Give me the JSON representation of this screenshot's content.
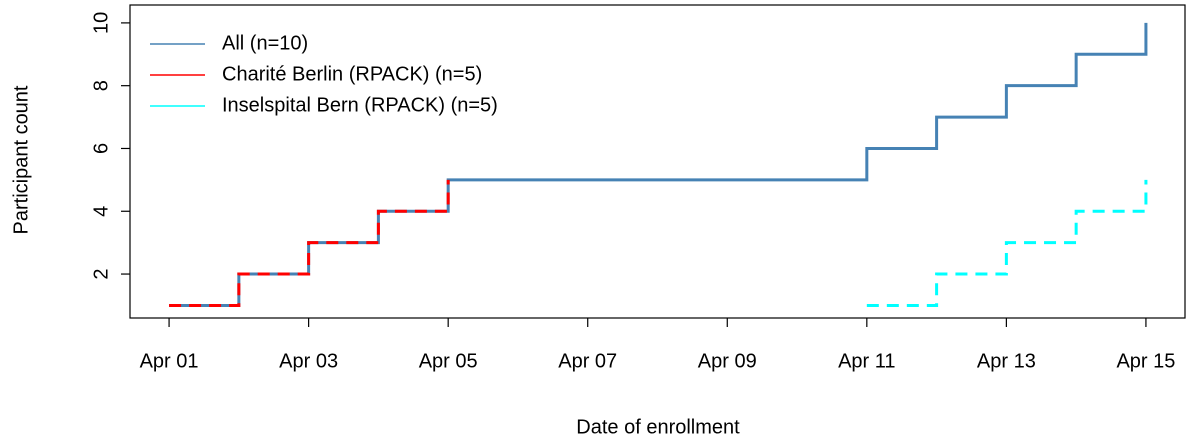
{
  "chart_data": {
    "type": "step",
    "xlabel": "Date of enrollment",
    "ylabel": "Participant count",
    "xlim": [
      0.44,
      15.56
    ],
    "xticks": [
      {
        "value": 1,
        "label": "Apr 01"
      },
      {
        "value": 3,
        "label": "Apr 03"
      },
      {
        "value": 5,
        "label": "Apr 05"
      },
      {
        "value": 7,
        "label": "Apr 07"
      },
      {
        "value": 9,
        "label": "Apr 09"
      },
      {
        "value": 11,
        "label": "Apr 11"
      },
      {
        "value": 13,
        "label": "Apr 13"
      },
      {
        "value": 15,
        "label": "Apr 15"
      }
    ],
    "ylim": [
      0.6,
      10.57
    ],
    "yticks": [
      2,
      4,
      6,
      8,
      10
    ],
    "legend": "top-left",
    "series": [
      {
        "name": "All (n=10)",
        "color": "#4682b4",
        "linestyle": "solid",
        "x": [
          1,
          2,
          3,
          4,
          5,
          11,
          12,
          13,
          14,
          15
        ],
        "values": [
          1,
          2,
          3,
          4,
          5,
          6,
          7,
          8,
          9,
          10
        ]
      },
      {
        "name": "Charité Berlin (RPACK) (n=5)",
        "color": "#ff0000",
        "linestyle": "dashed",
        "x": [
          1,
          2,
          3,
          4,
          5
        ],
        "values": [
          1,
          2,
          3,
          4,
          5
        ]
      },
      {
        "name": "Inselspital Bern (RPACK) (n=5)",
        "color": "#00ffff",
        "linestyle": "dashed",
        "x": [
          11,
          12,
          13,
          14,
          15
        ],
        "values": [
          1,
          2,
          3,
          4,
          5
        ]
      }
    ]
  }
}
